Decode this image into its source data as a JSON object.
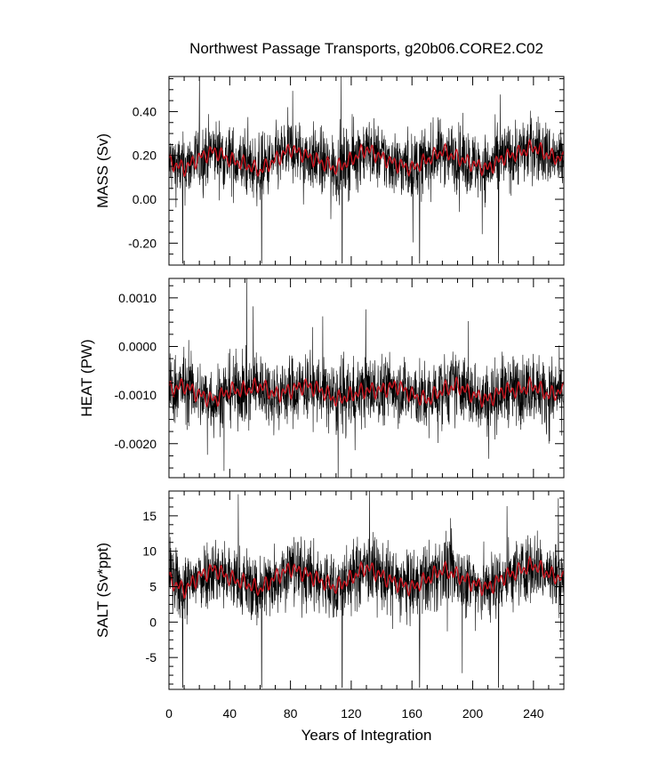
{
  "figure": {
    "title": "Northwest Passage Transports, g20b06.CORE2.C02",
    "xlabel": "Years of Integration",
    "colors": {
      "raw": "#000000",
      "smooth": "#c8141e",
      "axis": "#000000",
      "background": "#ffffff"
    }
  },
  "chart_data": [
    {
      "type": "line",
      "ylabel": "MASS (Sv)",
      "xlim": [
        0,
        260
      ],
      "ylim": [
        -0.3,
        0.56
      ],
      "x_ticks": [
        "0",
        "40",
        "80",
        "120",
        "160",
        "200",
        "240"
      ],
      "y_ticks": [
        "-0.20",
        "0.00",
        "0.20",
        "0.40"
      ],
      "series": [
        {
          "values_summary": {
            "mean": 0.18,
            "min": -0.29,
            "max": 0.56,
            "spike_years": [
              9,
              61,
              114,
              165,
              217
            ]
          }
        }
      ],
      "smoothed_anchor_x": [
        0,
        10,
        20,
        30,
        40,
        50,
        60,
        70,
        80,
        90,
        100,
        110,
        120,
        130,
        140,
        150,
        160,
        170,
        180,
        190,
        200,
        210,
        220,
        230,
        240,
        250,
        260
      ],
      "smoothed_anchor_y": [
        0.17,
        0.14,
        0.19,
        0.22,
        0.18,
        0.16,
        0.13,
        0.18,
        0.23,
        0.2,
        0.17,
        0.14,
        0.18,
        0.23,
        0.19,
        0.16,
        0.14,
        0.18,
        0.22,
        0.19,
        0.16,
        0.14,
        0.19,
        0.21,
        0.24,
        0.2,
        0.18
      ]
    },
    {
      "type": "line",
      "ylabel": "HEAT (PW)",
      "xlim": [
        0,
        260
      ],
      "ylim": [
        -0.0027,
        0.0014
      ],
      "x_ticks": [
        "0",
        "40",
        "80",
        "120",
        "160",
        "200",
        "240"
      ],
      "y_ticks": [
        "-0.0020",
        "-0.0010",
        "0.0000",
        "0.0010"
      ],
      "series": [
        {
          "values_summary": {
            "mean": -0.0009,
            "min": -0.0027,
            "max": 0.0014
          }
        }
      ],
      "smoothed_anchor_x": [
        0,
        10,
        20,
        30,
        40,
        50,
        60,
        70,
        80,
        90,
        100,
        110,
        120,
        130,
        140,
        150,
        160,
        170,
        180,
        190,
        200,
        210,
        220,
        230,
        240,
        250,
        260
      ],
      "smoothed_anchor_y": [
        -0.0009,
        -0.0008,
        -0.001,
        -0.0011,
        -0.0009,
        -0.0009,
        -0.0008,
        -0.001,
        -0.0009,
        -0.0008,
        -0.0009,
        -0.0011,
        -0.001,
        -0.0009,
        -0.0009,
        -0.0008,
        -0.001,
        -0.0011,
        -0.0009,
        -0.0008,
        -0.001,
        -0.0011,
        -0.0009,
        -0.0009,
        -0.0008,
        -0.001,
        -0.0009
      ]
    },
    {
      "type": "line",
      "ylabel": "SALT (Sv*ppt)",
      "xlim": [
        0,
        260
      ],
      "ylim": [
        -9.5,
        18.5
      ],
      "x_ticks": [
        "0",
        "40",
        "80",
        "120",
        "160",
        "200",
        "240"
      ],
      "y_ticks": [
        "-5",
        "0",
        "5",
        "10",
        "15"
      ],
      "series": [
        {
          "values_summary": {
            "mean": 6,
            "min": -9.5,
            "max": 18.5,
            "spike_years": [
              9,
              61,
              114,
              165,
              217
            ]
          }
        }
      ],
      "smoothed_anchor_x": [
        0,
        10,
        20,
        30,
        40,
        50,
        60,
        70,
        80,
        90,
        100,
        110,
        120,
        130,
        140,
        150,
        160,
        170,
        180,
        190,
        200,
        210,
        220,
        230,
        240,
        250,
        260
      ],
      "smoothed_anchor_y": [
        6,
        4.5,
        6.5,
        7.5,
        6.2,
        5.5,
        4.6,
        6.3,
        7.6,
        6.8,
        5.8,
        4.9,
        6.2,
        7.8,
        6.5,
        5.5,
        4.8,
        6.1,
        7.4,
        6.6,
        5.4,
        4.8,
        6.3,
        7.2,
        8.1,
        6.8,
        6.0
      ]
    }
  ]
}
